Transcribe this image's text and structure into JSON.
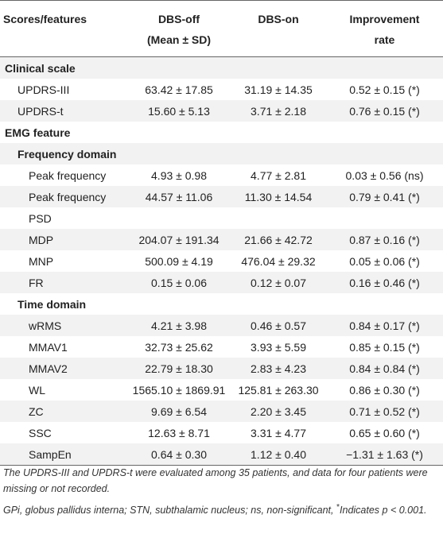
{
  "table": {
    "header": [
      [
        "Scores/features"
      ],
      [
        "DBS-off",
        "(Mean ± SD)"
      ],
      [
        "DBS-on"
      ],
      [
        "Improvement",
        "rate"
      ]
    ],
    "sections": [
      {
        "title": "Clinical scale",
        "rows": [
          {
            "label": "UPDRS-III",
            "cells": [
              "63.42 ± 17.85",
              "31.19 ± 14.35",
              "0.52 ± 0.15 (*)"
            ]
          },
          {
            "label": "UPDRS-t",
            "cells": [
              "15.60 ± 5.13",
              "3.71 ± 2.18",
              "0.76 ± 0.15 (*)"
            ]
          }
        ]
      },
      {
        "title": "EMG feature",
        "groups": [
          {
            "title": "Frequency domain",
            "rows": [
              {
                "label": "Peak frequency",
                "cells": [
                  "4.93 ± 0.98",
                  "4.77 ± 2.81",
                  "0.03 ± 0.56 (ns)"
                ]
              },
              {
                "label": "Peak frequency",
                "cells": [
                  "44.57 ± 11.06",
                  "11.30 ± 14.54",
                  "0.79 ± 0.41 (*)"
                ]
              },
              {
                "label": "PSD"
              },
              {
                "label": "MDP",
                "cells": [
                  "204.07 ± 191.34",
                  "21.66 ± 42.72",
                  "0.87 ± 0.16 (*)"
                ]
              },
              {
                "label": "MNP",
                "cells": [
                  "500.09 ± 4.19",
                  "476.04 ± 29.32",
                  "0.05 ± 0.06 (*)"
                ]
              },
              {
                "label": "FR",
                "cells": [
                  "0.15 ± 0.06",
                  "0.12 ± 0.07",
                  "0.16 ± 0.46 (*)"
                ]
              }
            ]
          },
          {
            "title": "Time domain",
            "rows": [
              {
                "label": "wRMS",
                "cells": [
                  "4.21 ± 3.98",
                  "0.46 ± 0.57",
                  "0.84 ± 0.17 (*)"
                ]
              },
              {
                "label": "MMAV1",
                "cells": [
                  "32.73 ± 25.62",
                  "3.93 ± 5.59",
                  "0.85 ± 0.15 (*)"
                ]
              },
              {
                "label": "MMAV2",
                "cells": [
                  "22.79 ± 18.30",
                  "2.83 ± 4.23",
                  "0.84 ± 0.84 (*)"
                ]
              },
              {
                "label": "WL",
                "cells": [
                  "1565.10 ± 1869.91",
                  "125.81 ± 263.30",
                  "0.86 ± 0.30 (*)"
                ]
              },
              {
                "label": "ZC",
                "cells": [
                  "9.69 ± 6.54",
                  "2.20 ± 3.45",
                  "0.71 ± 0.52 (*)"
                ]
              },
              {
                "label": "SSC",
                "cells": [
                  "12.63 ± 8.71",
                  "3.31 ± 4.77",
                  "0.65 ± 0.60 (*)"
                ]
              },
              {
                "label": "SampEn",
                "cells": [
                  "0.64 ± 0.30",
                  "1.12 ± 0.40",
                  "−1.31 ± 1.63 (*)"
                ]
              }
            ]
          }
        ]
      }
    ],
    "notes": [
      [
        "The UPDRS-III and UPDRS-t were evaluated among 35 patients, and data for four patients were missing or not recorded."
      ],
      [
        "GPi, globus pallidus interna; STN, subthalamic nucleus; ns, non-significant, ",
        "*",
        "Indicates ",
        "p",
        " < 0.001."
      ]
    ]
  }
}
